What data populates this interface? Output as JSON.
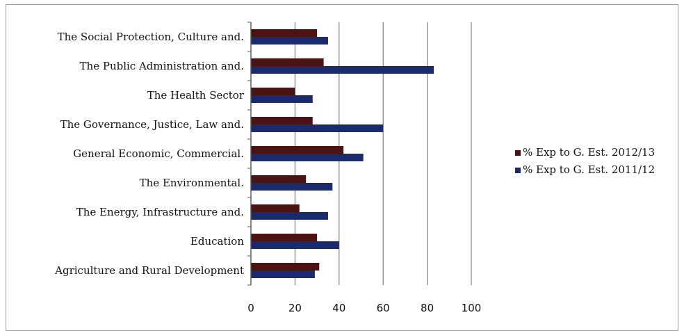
{
  "chart_data": {
    "type": "bar",
    "orientation": "horizontal",
    "categories": [
      "The Social Protection, Culture and.",
      "The Public Administration and.",
      "The Health Sector",
      "The Governance, Justice, Law and.",
      "General Economic, Commercial.",
      "The Environmental.",
      "The Energy, Infrastructure and.",
      "Education",
      "Agriculture and Rural Development"
    ],
    "series": [
      {
        "name": "% Exp to G. Est. 2012/13",
        "color": "#4a1414",
        "values": [
          30,
          33,
          20,
          28,
          42,
          25,
          22,
          30,
          31
        ]
      },
      {
        "name": "% Exp to G. Est. 2011/12",
        "color": "#1a2a6e",
        "values": [
          35,
          83,
          28,
          60,
          51,
          37,
          35,
          40,
          29
        ]
      }
    ],
    "xlim": [
      0,
      100
    ],
    "xticks": [
      "0",
      "20",
      "40",
      "60",
      "80",
      "100"
    ],
    "grid": "vertical",
    "legend_position": "right",
    "title": "",
    "xlabel": "",
    "ylabel": ""
  }
}
